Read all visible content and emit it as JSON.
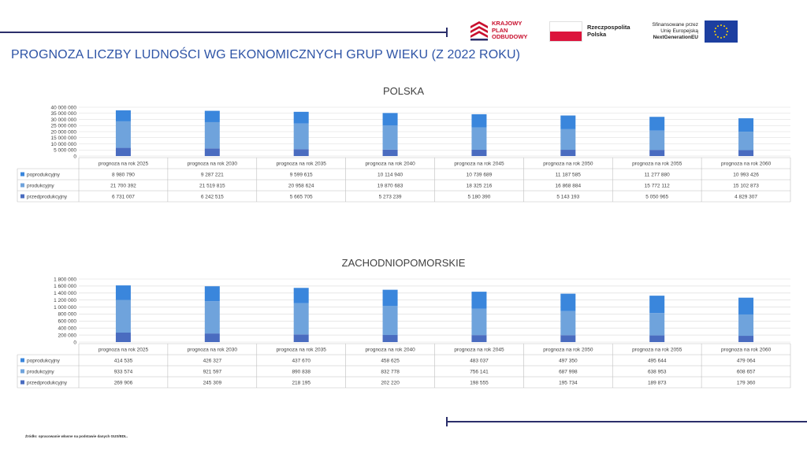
{
  "header": {
    "kpo_lines": [
      "KRAJOWY",
      "PLAN",
      "ODBUDOWY"
    ],
    "rp_lines": [
      "Rzeczpospolita",
      "Polska"
    ],
    "eu_lines": [
      "Sfinansowane przez",
      "Unię Europejską",
      "NextGenerationEU"
    ]
  },
  "page_title": "PROGNOZA LICZBY LUDNOŚCI WG EKONOMICZNYCH GRUP WIEKU (Z 2022 ROKU)",
  "source_note": "Źródło: opracowanie własne na podstawie danych GUS/BDL.",
  "colors": {
    "poprodukcyjny": "#3a86dc",
    "produkcyjny": "#6fa3dc",
    "przedprodukcyjny": "#4a6cc0"
  },
  "chart_data": [
    {
      "type": "bar",
      "stacked": true,
      "title": "POLSKA",
      "categories": [
        "prognoza na rok 2025",
        "prognoza na rok 2030",
        "prognoza na rok 2035",
        "prognoza na rok 2040",
        "prognoza na rok 2045",
        "prognoza na rok 2050",
        "prognoza na rok 2055",
        "prognoza na rok 2060"
      ],
      "ylim": [
        0,
        40000000
      ],
      "yticks": [
        0,
        5000000,
        10000000,
        15000000,
        20000000,
        25000000,
        30000000,
        35000000,
        40000000
      ],
      "ytick_labels": [
        "0",
        "5 000 000",
        "10 000 000",
        "15 000 000",
        "20 000 000",
        "25 000 000",
        "30 000 000",
        "35 000 000",
        "40 000 000"
      ],
      "grid": true,
      "legend": "data-table",
      "series": [
        {
          "name": "poprodukcyjny",
          "values": [
            8980790,
            9287221,
            9599615,
            10114940,
            10739689,
            11187585,
            11277880,
            10993426
          ],
          "labels": [
            "8 980 790",
            "9 287 221",
            "9 599 615",
            "10 114 940",
            "10 739 689",
            "11 187 585",
            "11 277 880",
            "10 993 426"
          ]
        },
        {
          "name": "produkcyjny",
          "values": [
            21700392,
            21519815,
            20958624,
            19870683,
            18325216,
            16868884,
            15772112,
            15102873
          ],
          "labels": [
            "21 700 392",
            "21 519 815",
            "20 958 624",
            "19 870 683",
            "18 325 216",
            "16 868 884",
            "15 772 112",
            "15 102 873"
          ]
        },
        {
          "name": "przedprodukcyjny",
          "values": [
            6731007,
            6242515,
            5665705,
            5273239,
            5180390,
            5143193,
            5050965,
            4829307
          ],
          "labels": [
            "6 731 007",
            "6 242 515",
            "5 665 705",
            "5 273 239",
            "5 180 390",
            "5 143 193",
            "5 050 965",
            "4 829 307"
          ]
        }
      ]
    },
    {
      "type": "bar",
      "stacked": true,
      "title": "ZACHODNIOPOMORSKIE",
      "categories": [
        "prognoza na rok 2025",
        "prognoza na rok 2030",
        "prognoza na rok 2035",
        "prognoza na rok 2040",
        "prognoza na rok 2045",
        "prognoza na rok 2050",
        "prognoza na rok 2055",
        "prognoza na rok 2060"
      ],
      "ylim": [
        0,
        1800000
      ],
      "yticks": [
        0,
        200000,
        400000,
        600000,
        800000,
        1000000,
        1200000,
        1400000,
        1600000,
        1800000
      ],
      "ytick_labels": [
        "0",
        "200 000",
        "400 000",
        "600 000",
        "800 000",
        "1 000 000",
        "1 200 000",
        "1 400 000",
        "1 600 000",
        "1 800 000"
      ],
      "grid": true,
      "legend": "data-table",
      "series": [
        {
          "name": "poprodukcyjny",
          "values": [
            414535,
            426327,
            437670,
            458625,
            483037,
            497350,
            495644,
            479064
          ],
          "labels": [
            "414 535",
            "426 327",
            "437 670",
            "458 625",
            "483 037",
            "497 350",
            "495 644",
            "479 064"
          ]
        },
        {
          "name": "produkcyjny",
          "values": [
            933574,
            921597,
            890838,
            832778,
            756141,
            687998,
            638953,
            608657
          ],
          "labels": [
            "933 574",
            "921 597",
            "890 838",
            "832 778",
            "756 141",
            "687 998",
            "638 953",
            "608 657"
          ]
        },
        {
          "name": "przedprodukcyjny",
          "values": [
            269906,
            245309,
            218195,
            202220,
            198555,
            195734,
            189873,
            179360
          ],
          "labels": [
            "269 906",
            "245 309",
            "218 195",
            "202 220",
            "198 555",
            "195 734",
            "189 873",
            "179 360"
          ]
        }
      ]
    }
  ]
}
